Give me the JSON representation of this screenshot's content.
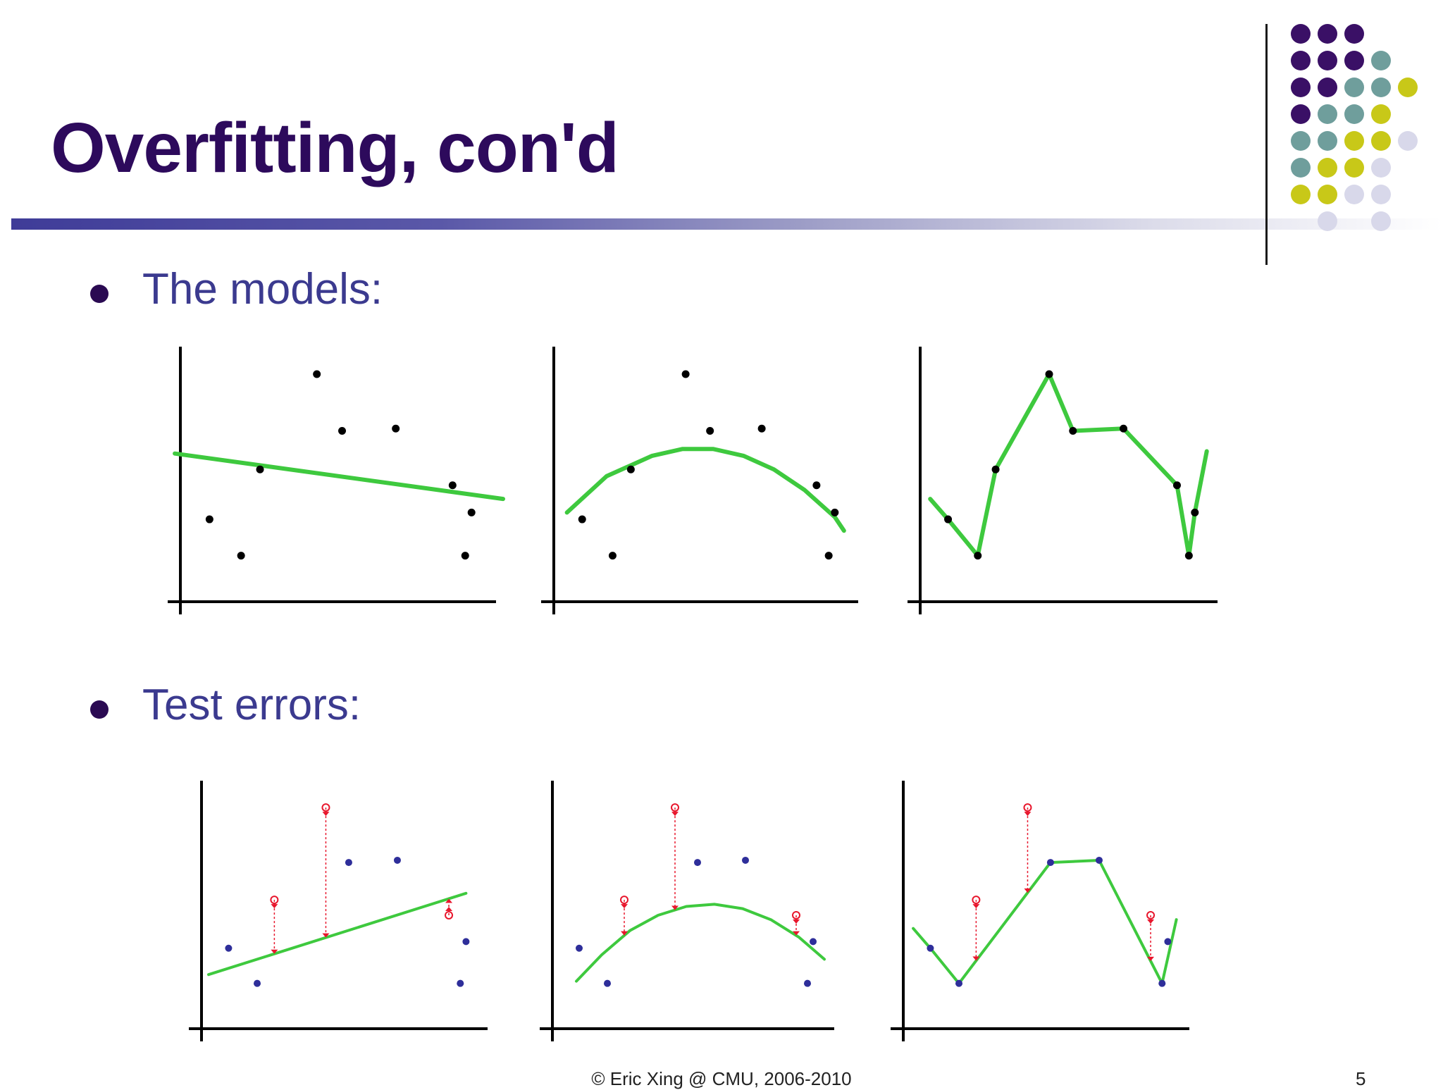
{
  "slide": {
    "title": "Overfitting, con'd",
    "bullets": [
      "The models:",
      "Test errors:"
    ],
    "footer": "© Eric Xing @ CMU, 2006-2010",
    "page_number": "5"
  },
  "colors": {
    "title": "#2d0a5c",
    "bullet_text": "#3b3a8f",
    "fit_line": "#3ec93e",
    "train_point": "#000000",
    "test_point": "#2e2e9a",
    "error_marker": "#e8162c",
    "decor_purple": "#3a1066",
    "decor_teal": "#6f9e9c",
    "decor_yellow": "#c8c818",
    "decor_lavender": "#d8d8ea"
  },
  "decor_dots": [
    [
      "decor_purple",
      "decor_purple",
      "decor_purple",
      null,
      null
    ],
    [
      "decor_purple",
      "decor_purple",
      "decor_purple",
      "decor_teal",
      null
    ],
    [
      "decor_purple",
      "decor_purple",
      "decor_teal",
      "decor_teal",
      "decor_yellow"
    ],
    [
      "decor_purple",
      "decor_teal",
      "decor_teal",
      "decor_yellow",
      null
    ],
    [
      "decor_teal",
      "decor_teal",
      "decor_yellow",
      "decor_yellow",
      "decor_lavender"
    ],
    [
      "decor_teal",
      "decor_yellow",
      "decor_yellow",
      "decor_lavender",
      null
    ],
    [
      "decor_yellow",
      "decor_yellow",
      "decor_lavender",
      "decor_lavender",
      null
    ],
    [
      null,
      "decor_lavender",
      null,
      "decor_lavender",
      null
    ]
  ],
  "chart_data": [
    {
      "type": "scatter",
      "fit": "linear",
      "x_range": [
        0,
        10
      ],
      "y_range": [
        0,
        10
      ],
      "points": [
        [
          0.7,
          2.7
        ],
        [
          1.7,
          1.1
        ],
        [
          2.3,
          4.9
        ],
        [
          4.1,
          9.1
        ],
        [
          4.9,
          6.6
        ],
        [
          6.6,
          6.7
        ],
        [
          8.4,
          4.2
        ],
        [
          8.8,
          1.1
        ],
        [
          9.0,
          3.0
        ]
      ],
      "fit_curve": [
        [
          -0.4,
          5.6
        ],
        [
          10.0,
          3.6
        ]
      ]
    },
    {
      "type": "scatter",
      "fit": "quadratic",
      "x_range": [
        0,
        10
      ],
      "y_range": [
        0,
        10
      ],
      "points": [
        [
          0.7,
          2.7
        ],
        [
          1.7,
          1.1
        ],
        [
          2.3,
          4.9
        ],
        [
          4.1,
          9.1
        ],
        [
          4.9,
          6.6
        ],
        [
          6.6,
          6.7
        ],
        [
          8.4,
          4.2
        ],
        [
          8.8,
          1.1
        ],
        [
          9.0,
          3.0
        ]
      ],
      "fit_curve": [
        [
          0.2,
          3.0
        ],
        [
          1.5,
          4.6
        ],
        [
          3.0,
          5.5
        ],
        [
          4.0,
          5.8
        ],
        [
          5.0,
          5.8
        ],
        [
          6.0,
          5.5
        ],
        [
          7.0,
          4.9
        ],
        [
          8.0,
          4.0
        ],
        [
          9.0,
          2.8
        ],
        [
          9.3,
          2.2
        ]
      ]
    },
    {
      "type": "scatter",
      "fit": "interpolating",
      "x_range": [
        0,
        10
      ],
      "y_range": [
        0,
        10
      ],
      "points": [
        [
          0.7,
          2.7
        ],
        [
          1.7,
          1.1
        ],
        [
          2.3,
          4.9
        ],
        [
          4.1,
          9.1
        ],
        [
          4.9,
          6.6
        ],
        [
          6.6,
          6.7
        ],
        [
          8.4,
          4.2
        ],
        [
          8.8,
          1.1
        ],
        [
          9.0,
          3.0
        ]
      ],
      "fit_curve": [
        [
          0.1,
          3.6
        ],
        [
          0.7,
          2.7
        ],
        [
          1.7,
          1.1
        ],
        [
          2.3,
          4.9
        ],
        [
          4.1,
          9.1
        ],
        [
          4.9,
          6.6
        ],
        [
          6.6,
          6.7
        ],
        [
          8.4,
          4.2
        ],
        [
          8.8,
          1.1
        ],
        [
          9.0,
          3.0
        ],
        [
          9.4,
          5.7
        ]
      ]
    },
    {
      "type": "scatter",
      "fit": "linear",
      "shows": "test errors",
      "x_range": [
        0,
        10
      ],
      "y_range": [
        0,
        10
      ],
      "points": [
        [
          0.7,
          2.7
        ],
        [
          1.7,
          1.1
        ],
        [
          4.9,
          6.6
        ],
        [
          6.6,
          6.7
        ],
        [
          8.8,
          1.1
        ],
        [
          9.0,
          3.0
        ]
      ],
      "test_points": [
        [
          2.3,
          4.9
        ],
        [
          4.1,
          9.1
        ],
        [
          8.4,
          4.2
        ]
      ],
      "fit_curve": [
        [
          0.0,
          1.5
        ],
        [
          9.0,
          5.2
        ]
      ]
    },
    {
      "type": "scatter",
      "fit": "quadratic",
      "shows": "test errors",
      "x_range": [
        0,
        10
      ],
      "y_range": [
        0,
        10
      ],
      "points": [
        [
          0.7,
          2.7
        ],
        [
          1.7,
          1.1
        ],
        [
          4.9,
          6.6
        ],
        [
          6.6,
          6.7
        ],
        [
          8.8,
          1.1
        ],
        [
          9.0,
          3.0
        ]
      ],
      "test_points": [
        [
          2.3,
          4.9
        ],
        [
          4.1,
          9.1
        ],
        [
          8.4,
          4.2
        ]
      ],
      "fit_curve": [
        [
          0.6,
          1.2
        ],
        [
          1.5,
          2.4
        ],
        [
          2.5,
          3.5
        ],
        [
          3.5,
          4.2
        ],
        [
          4.5,
          4.6
        ],
        [
          5.5,
          4.7
        ],
        [
          6.5,
          4.5
        ],
        [
          7.5,
          4.0
        ],
        [
          8.5,
          3.2
        ],
        [
          9.4,
          2.2
        ]
      ]
    },
    {
      "type": "scatter",
      "fit": "interpolating",
      "shows": "test errors",
      "x_range": [
        0,
        10
      ],
      "y_range": [
        0,
        10
      ],
      "points": [
        [
          0.7,
          2.7
        ],
        [
          1.7,
          1.1
        ],
        [
          4.9,
          6.6
        ],
        [
          6.6,
          6.7
        ],
        [
          8.8,
          1.1
        ],
        [
          9.0,
          3.0
        ]
      ],
      "test_points": [
        [
          2.3,
          4.9
        ],
        [
          4.1,
          9.1
        ],
        [
          8.4,
          4.2
        ]
      ],
      "fit_curve": [
        [
          0.1,
          3.6
        ],
        [
          0.7,
          2.7
        ],
        [
          1.7,
          1.1
        ],
        [
          4.9,
          6.6
        ],
        [
          6.6,
          6.7
        ],
        [
          8.8,
          1.1
        ],
        [
          9.3,
          4.0
        ]
      ]
    }
  ]
}
